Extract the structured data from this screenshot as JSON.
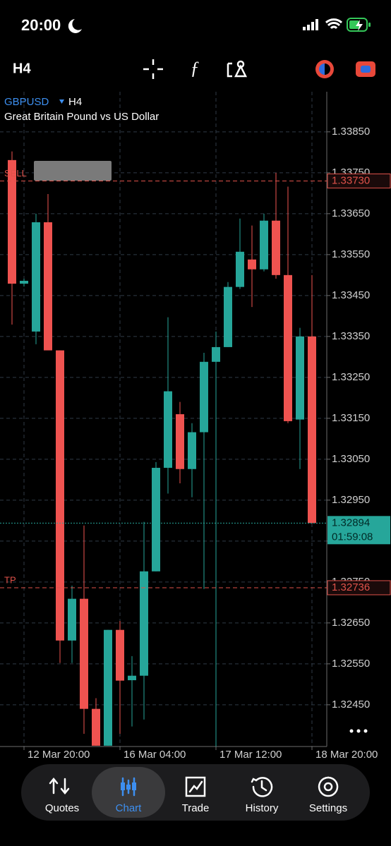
{
  "status_bar": {
    "time": "20:00"
  },
  "toolbar": {
    "timeframe": "H4"
  },
  "chart_data": {
    "type": "candlestick",
    "symbol": "GBPUSD",
    "timeframe": "H4",
    "description": "Great Britain Pound vs US Dollar",
    "categories": [
      null,
      "12 Mar 20:00",
      null,
      null,
      null,
      null,
      null,
      null,
      null,
      "16 Mar 04:00",
      null,
      null,
      null,
      null,
      null,
      null,
      null,
      "17 Mar 12:00",
      null,
      null,
      null,
      null,
      null,
      null,
      null,
      "18 Mar 20:00"
    ],
    "open": [
      1.33781,
      1.33479,
      1.33362,
      1.33629,
      1.33316,
      1.32607,
      1.32709,
      1.3244,
      1.3235,
      1.32633,
      1.3251,
      1.32521,
      1.32776,
      1.33029,
      1.3316,
      1.33026,
      1.33116,
      1.33288,
      1.33324,
      1.33471,
      1.33538,
      1.33514,
      1.33633,
      1.335,
      1.33147,
      1.3335
    ],
    "high": [
      1.33802,
      1.33491,
      1.3365,
      1.33698,
      1.33316,
      1.32741,
      1.32888,
      1.32466,
      1.32633,
      1.32655,
      1.32569,
      1.32897,
      1.33043,
      1.33397,
      1.3319,
      1.33138,
      1.3331,
      1.33362,
      1.33483,
      1.33638,
      1.33621,
      1.3365,
      1.3375,
      1.33716,
      1.33371,
      1.335
    ],
    "low": [
      1.33379,
      1.33472,
      1.33331,
      1.33316,
      1.32552,
      1.32552,
      1.32379,
      1.3235,
      1.3235,
      1.32379,
      1.32397,
      1.32414,
      1.32776,
      1.32966,
      1.32991,
      1.32957,
      1.32733,
      1.32276,
      1.33324,
      1.33466,
      1.33422,
      1.33509,
      1.33491,
      1.33138,
      1.33026,
      1.32893
    ],
    "close": [
      1.33479,
      1.33486,
      1.33629,
      1.33316,
      1.32607,
      1.32709,
      1.3244,
      1.3235,
      1.32633,
      1.32509,
      1.32521,
      1.32776,
      1.33029,
      1.33216,
      1.33026,
      1.33116,
      1.33288,
      1.33324,
      1.33471,
      1.33557,
      1.33514,
      1.33633,
      1.335,
      1.33143,
      1.3335,
      1.32894
    ],
    "up_color": "#26a69a",
    "down_color": "#ef5350",
    "ylim": [
      1.32348,
      1.33948
    ],
    "yticks": [
      {
        "value": 1.3385,
        "label": "1.33850"
      },
      {
        "value": 1.3375,
        "label": "1.33750"
      },
      {
        "value": 1.3365,
        "label": "1.33650"
      },
      {
        "value": 1.3355,
        "label": "1.33550"
      },
      {
        "value": 1.3345,
        "label": "1.33450"
      },
      {
        "value": 1.3335,
        "label": "1.33350"
      },
      {
        "value": 1.3325,
        "label": "1.33250"
      },
      {
        "value": 1.3315,
        "label": "1.33150"
      },
      {
        "value": 1.3305,
        "label": "1.33050"
      },
      {
        "value": 1.3295,
        "label": "1.32950"
      },
      {
        "value": 1.3285,
        "label": "1.32850"
      },
      {
        "value": 1.3275,
        "label": "1.32750"
      },
      {
        "value": 1.3265,
        "label": "1.32650"
      },
      {
        "value": 1.3255,
        "label": "1.32550"
      },
      {
        "value": 1.3245,
        "label": "1.32450"
      }
    ],
    "grid": true,
    "lines": [
      {
        "name": "SELL",
        "value": 1.3373,
        "value_label": "1.33730",
        "color": "#e0524a"
      },
      {
        "name": "TP",
        "value": 1.32736,
        "value_label": "1.32736",
        "color": "#e0524a"
      }
    ],
    "current_price": {
      "value": 1.32894,
      "value_label": "1.32894",
      "countdown": "01:59:08",
      "color": "#26a69a"
    }
  },
  "tab_bar": {
    "tabs": [
      "Quotes",
      "Chart",
      "Trade",
      "History",
      "Settings"
    ],
    "active": 1
  }
}
